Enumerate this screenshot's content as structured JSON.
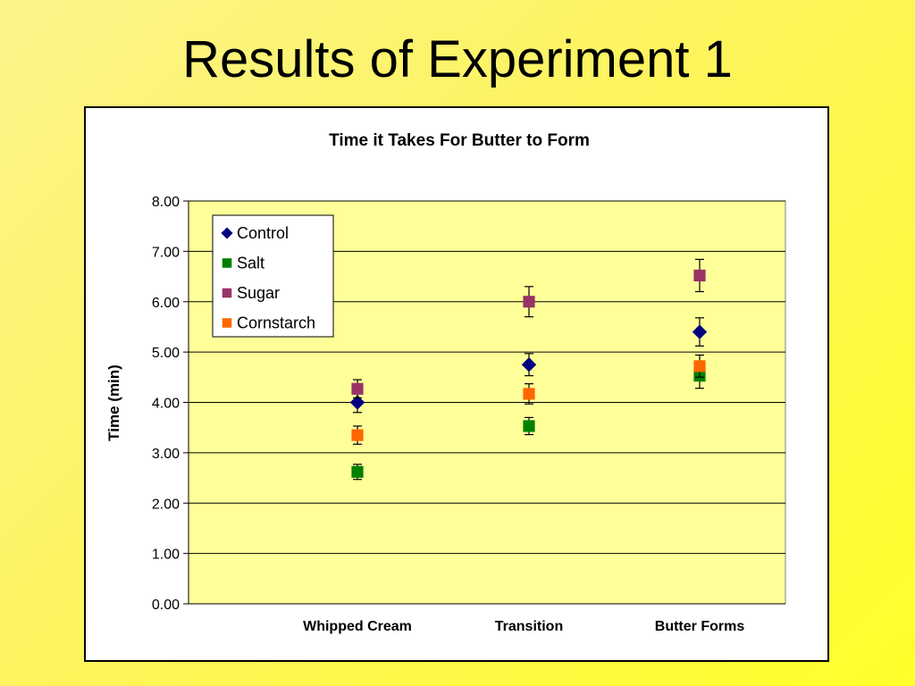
{
  "slide": {
    "title": "Results of Experiment 1"
  },
  "chart_data": {
    "type": "scatter",
    "title": "Time it Takes For Butter to Form",
    "xlabel": "",
    "ylabel": "Time (min)",
    "categories": [
      "Whipped Cream",
      "Transition",
      "Butter Forms"
    ],
    "ylim": [
      0,
      8
    ],
    "yticks": [
      "0.00",
      "1.00",
      "2.00",
      "3.00",
      "4.00",
      "5.00",
      "6.00",
      "7.00",
      "8.00"
    ],
    "grid": true,
    "legend": "top-left",
    "plot_background": "#ffff99",
    "series": [
      {
        "name": "Control",
        "marker": "diamond",
        "color": "#000080",
        "values": [
          4.0,
          4.75,
          5.4
        ],
        "errors": [
          0.2,
          0.22,
          0.28
        ]
      },
      {
        "name": "Salt",
        "marker": "square",
        "color": "#008000",
        "values": [
          2.62,
          3.53,
          4.53
        ],
        "errors": [
          0.15,
          0.17,
          0.25
        ]
      },
      {
        "name": "Sugar",
        "marker": "square",
        "color": "#993366",
        "values": [
          4.27,
          6.0,
          6.52
        ],
        "errors": [
          0.18,
          0.3,
          0.32
        ]
      },
      {
        "name": "Cornstarch",
        "marker": "square",
        "color": "#ff6600",
        "values": [
          3.35,
          4.17,
          4.72
        ],
        "errors": [
          0.18,
          0.2,
          0.22
        ]
      }
    ]
  }
}
